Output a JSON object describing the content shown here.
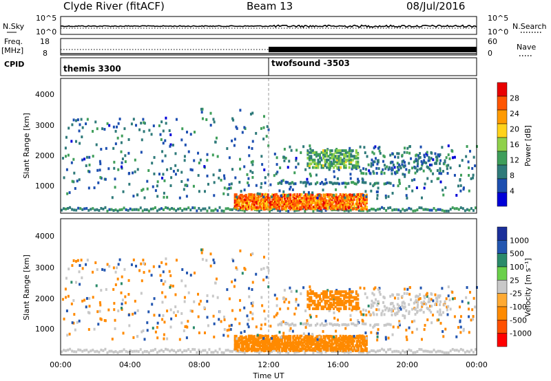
{
  "header": {
    "station": "Clyde River (fitACF)",
    "beam": "Beam 13",
    "date": "08/Jul/2016"
  },
  "noise_panel": {
    "left_label": "N.Sky",
    "right_label": "N.Search",
    "left_ticks": [
      "10^5",
      "10^0"
    ],
    "right_ticks": [
      "10^5",
      "10^0"
    ]
  },
  "freq_panel": {
    "left_label": "Freq.",
    "left_unit": "[MHz]",
    "right_label": "Nave",
    "left_ticks": [
      "18",
      "8"
    ],
    "right_ticks": [
      "60",
      "0"
    ]
  },
  "cpid_panel": {
    "label": "CPID",
    "modes": [
      {
        "name": "themis 3300",
        "start_hour": 0
      },
      {
        "name": "twofsound -3503",
        "start_hour": 12
      }
    ]
  },
  "x_axis": {
    "title": "Time UT",
    "ticks": [
      "00:00",
      "04:00",
      "08:00",
      "12:00",
      "16:00",
      "20:00",
      "00:00"
    ]
  },
  "chart_data": [
    {
      "type": "heatmap",
      "title": "",
      "xlabel": "Time UT",
      "ylabel": "Slant Range [km]",
      "xlim": [
        0,
        24
      ],
      "ylim": [
        180,
        4500
      ],
      "yticks": [
        "1000",
        "2000",
        "3000",
        "4000"
      ],
      "colorbar": {
        "label": "Power [dB]",
        "ticks": [
          "28",
          "24",
          "20",
          "16",
          "12",
          "8",
          "4"
        ],
        "range": [
          0,
          32
        ],
        "colors": [
          "#0000d8",
          "#1d4fb0",
          "#2f7a7a",
          "#3f9e5a",
          "#8fd14a",
          "#ffd21a",
          "#ff9a00",
          "#ff5500",
          "#e80000"
        ]
      }
    },
    {
      "type": "heatmap",
      "title": "",
      "xlabel": "Time UT",
      "ylabel": "Slant Range [km]",
      "xlim": [
        0,
        24
      ],
      "ylim": [
        180,
        4500
      ],
      "yticks": [
        "1000",
        "2000",
        "3000",
        "4000"
      ],
      "colorbar": {
        "label": "Velocity [m s⁻¹]",
        "ticks": [
          "1000",
          "500",
          "100",
          "25",
          "-25",
          "-100",
          "-500",
          "-1000"
        ],
        "colors": [
          "#ff0000",
          "#ff5000",
          "#ff8a00",
          "#ffaa33",
          "#c8c8c8",
          "#6ad04a",
          "#2a8a6a",
          "#2356b0",
          "#1a2f9a"
        ]
      }
    }
  ]
}
